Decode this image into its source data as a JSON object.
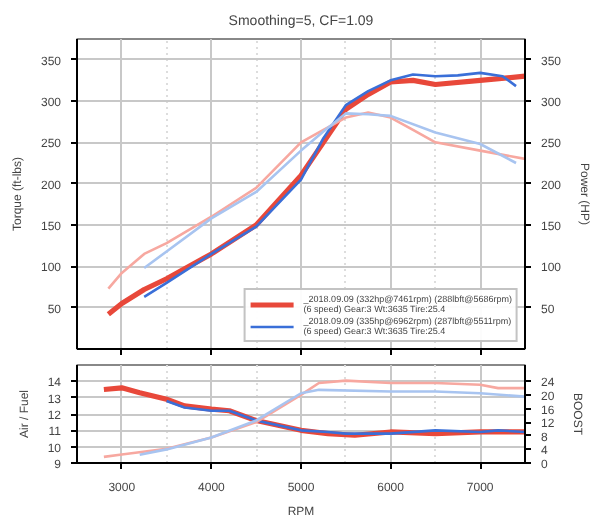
{
  "chart_data": [
    {
      "type": "line",
      "subtitle": "Smoothing=5, CF=1.09",
      "ylabel": "Torque (ft-lbs)",
      "y2label": "Power (HP)",
      "xlim": [
        2500,
        7500
      ],
      "xticks": [
        3000,
        4000,
        5000,
        6000,
        7000
      ],
      "ylim": [
        0,
        375
      ],
      "yticks": [
        50,
        100,
        150,
        200,
        250,
        300,
        350
      ],
      "y2lim": [
        0,
        375
      ],
      "y2ticks": [
        50,
        100,
        150,
        200,
        250,
        300,
        350
      ],
      "tick_labels": "y",
      "grid": true,
      "legend": "bottom right",
      "series": [
        {
          "name": "_2018.09.09 (332hp@7461rpm) (288lbft@5686rpm)\n(6 speed) Gear:3 Wt:3635 Tire:25.4",
          "color": "#e8483a",
          "axis": "y2",
          "x": [
            2850,
            3000,
            3250,
            3500,
            4000,
            4500,
            5000,
            5250,
            5500,
            5750,
            6000,
            6250,
            6500,
            7000,
            7500
          ],
          "values": [
            42,
            55,
            72,
            85,
            115,
            150,
            210,
            250,
            290,
            308,
            323,
            325,
            320,
            325,
            330
          ]
        },
        {
          "name": "_2018.09.09 (335hp@6962rpm) (287lbft@5511rpm)\n(6 speed) Gear:3 Wt:3635 Tire:25.4",
          "color": "#3a6fd8",
          "axis": "y2",
          "x": [
            3250,
            3500,
            4000,
            4500,
            5000,
            5250,
            5500,
            5750,
            6000,
            6250,
            6500,
            6750,
            7000,
            7250,
            7400
          ],
          "values": [
            63,
            80,
            115,
            148,
            205,
            255,
            295,
            312,
            325,
            332,
            330,
            331,
            334,
            330,
            318
          ]
        },
        {
          "color": "#f7a8a0",
          "x": [
            2850,
            3000,
            3250,
            3500,
            4000,
            4500,
            5000,
            5250,
            5500,
            5750,
            6000,
            6250,
            6500,
            7000,
            7500
          ],
          "values": [
            73,
            92,
            115,
            128,
            160,
            195,
            250,
            265,
            280,
            286,
            280,
            265,
            250,
            240,
            230
          ]
        },
        {
          "color": "#a8c4f0",
          "x": [
            3250,
            3500,
            4000,
            4500,
            5000,
            5250,
            5500,
            5750,
            6000,
            6500,
            7000,
            7400
          ],
          "values": [
            98,
            118,
            158,
            190,
            240,
            263,
            285,
            284,
            282,
            262,
            248,
            225
          ]
        }
      ]
    },
    {
      "type": "line",
      "xlabel": "RPM",
      "ylabel": "Air / Fuel",
      "y2label": "BOOST",
      "xlim": [
        2500,
        7500
      ],
      "xticks": [
        3000,
        4000,
        5000,
        6000,
        7000
      ],
      "ylim": [
        9,
        15
      ],
      "yticks": [
        9,
        10,
        11,
        12,
        13,
        14
      ],
      "y2lim": [
        0,
        28.8
      ],
      "y2ticks": [
        0,
        4,
        8,
        12,
        16,
        20,
        24
      ],
      "grid": true,
      "series": [
        {
          "color": "#e8483a",
          "x": [
            2800,
            3000,
            3200,
            3500,
            3700,
            4000,
            4200,
            4500,
            5000,
            5300,
            5600,
            6000,
            6500,
            7000,
            7500
          ],
          "values": [
            13.5,
            13.6,
            13.3,
            12.9,
            12.5,
            12.3,
            12.2,
            11.6,
            11.0,
            10.8,
            10.7,
            10.9,
            10.8,
            10.9,
            10.9
          ]
        },
        {
          "color": "#3a6fd8",
          "x": [
            3500,
            3700,
            4000,
            4200,
            4500,
            5000,
            5300,
            5500,
            6000,
            6500,
            7000,
            7200,
            7500
          ],
          "values": [
            12.8,
            12.4,
            12.2,
            12.2,
            11.6,
            11.0,
            10.9,
            10.8,
            10.8,
            11.0,
            10.9,
            11.0,
            10.9
          ]
        },
        {
          "color": "#f7a8a0",
          "axis": "y2",
          "x": [
            2800,
            3000,
            3500,
            4000,
            4500,
            5000,
            5200,
            5500,
            6000,
            6500,
            7000,
            7200,
            7500
          ],
          "values": [
            1.8,
            2.5,
            4.2,
            7.5,
            12,
            20,
            23.5,
            24.2,
            23.5,
            23.5,
            23,
            22,
            22
          ]
        },
        {
          "color": "#a8c4f0",
          "axis": "y2",
          "x": [
            3200,
            3500,
            4000,
            4500,
            5000,
            5200,
            6000,
            6500,
            7000,
            7500
          ],
          "values": [
            2.4,
            4,
            7.5,
            12.5,
            20.5,
            21.5,
            21,
            21,
            20.5,
            19.5
          ]
        }
      ]
    }
  ]
}
